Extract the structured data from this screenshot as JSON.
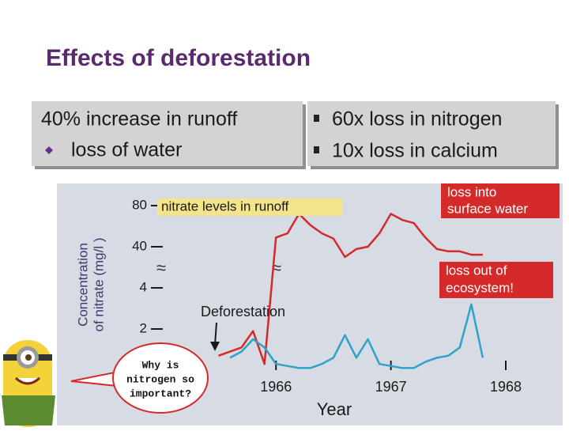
{
  "slide": {
    "title": "Effects of deforestation",
    "left_box": {
      "heading": "40% increase in runoff",
      "bullets": [
        "loss of water"
      ]
    },
    "right_box": {
      "bullets": [
        "60x loss in nitrogen",
        "10x loss in calcium"
      ]
    },
    "speech_bubble": [
      "Why is",
      "nitrogen so",
      "important?"
    ]
  },
  "chart_data": {
    "type": "line",
    "y_label": [
      "Concentration",
      "of nitrate (mg/l )"
    ],
    "x_label": "Year",
    "y_scale": "broken",
    "ylim": [
      0,
      80
    ],
    "yticks": [
      80,
      40,
      4,
      2
    ],
    "xlim": [
      1965.4,
      1968
    ],
    "xticks": [
      1966,
      1967,
      1968
    ],
    "x": [
      1965.5,
      1965.6,
      1965.7,
      1965.8,
      1965.9,
      1966.0,
      1966.1,
      1966.2,
      1966.3,
      1966.4,
      1966.5,
      1966.6,
      1966.7,
      1966.8,
      1966.9,
      1967.0,
      1967.1,
      1967.2,
      1967.3,
      1967.4,
      1967.5,
      1967.6,
      1967.7,
      1967.8
    ],
    "series": [
      {
        "color": "#d42a2a",
        "values": [
          0.7,
          0.9,
          1.1,
          1.9,
          0.3,
          49,
          53,
          72,
          61,
          53,
          48,
          31,
          38,
          40,
          53,
          72,
          66,
          63,
          49,
          38,
          36,
          36,
          33,
          33
        ]
      },
      {
        "color": "#2ea3c9",
        "values": [
          null,
          0.6,
          0.9,
          1.5,
          1.1,
          0.3,
          0.2,
          0.1,
          0.1,
          0.3,
          0.6,
          1.7,
          0.6,
          1.5,
          0.3,
          0.2,
          0.1,
          0.1,
          0.4,
          0.6,
          0.7,
          1.1,
          3.2,
          0.6
        ]
      }
    ],
    "annotations": [
      [
        "nitrate levels in runoff"
      ],
      [
        "loss into",
        "surface water"
      ],
      [
        "loss out of",
        "ecosystem!"
      ],
      [
        "Deforestation"
      ]
    ]
  }
}
